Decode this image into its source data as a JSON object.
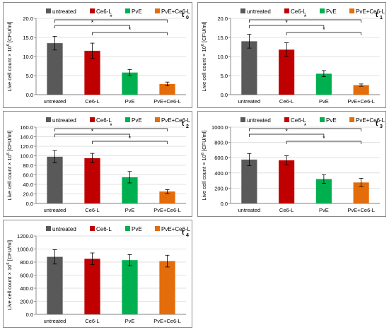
{
  "legend": {
    "entries": [
      "untreated",
      "Ce6-L",
      "PvE",
      "PvE+Ce6-L"
    ],
    "colors": [
      "#595959",
      "#c00000",
      "#00b050",
      "#e46c0a"
    ]
  },
  "ylabel_main": "Live cell count × 10",
  "ylabel_exp": "6",
  "ylabel_unit": " [CFU/ml]",
  "chart_data": [
    {
      "type": "bar",
      "panel_label": "t",
      "panel_sub": "0",
      "categories": [
        "untreated",
        "Ce6-L",
        "PvE",
        "PvE+Ce6-L"
      ],
      "values": [
        13.5,
        11.5,
        5.8,
        2.8
      ],
      "errors": [
        1.8,
        2.0,
        0.8,
        0.5
      ],
      "ylim": [
        0,
        20
      ],
      "ticks": [
        "0.0",
        "5.0",
        "10.0",
        "15.0",
        "20.0"
      ],
      "brackets": [
        {
          "from": 0,
          "to": 2,
          "label": "*"
        },
        {
          "from": 0,
          "to": 3,
          "label": "*"
        },
        {
          "from": 1,
          "to": 3,
          "label": "*"
        }
      ],
      "grid": true
    },
    {
      "type": "bar",
      "panel_label": "t",
      "panel_sub": "1",
      "categories": [
        "untreated",
        "Ce6-L",
        "PvE",
        "PvE+Ce6-L"
      ],
      "values": [
        14.0,
        11.8,
        5.5,
        2.5
      ],
      "errors": [
        1.8,
        1.8,
        0.8,
        0.3
      ],
      "ylim": [
        0,
        20
      ],
      "ticks": [
        "0.0",
        "5.0",
        "10.0",
        "15.0",
        "20.0"
      ],
      "brackets": [
        {
          "from": 0,
          "to": 2,
          "label": "*"
        },
        {
          "from": 0,
          "to": 3,
          "label": "*"
        },
        {
          "from": 1,
          "to": 3,
          "label": "*"
        }
      ],
      "grid": true
    },
    {
      "type": "bar",
      "panel_label": "t",
      "panel_sub": "2",
      "categories": [
        "untreated",
        "Ce6-L",
        "PvE",
        "PvE+Ce6-L"
      ],
      "values": [
        98,
        95,
        55,
        25
      ],
      "errors": [
        13,
        10,
        12,
        4
      ],
      "ylim": [
        0,
        160
      ],
      "ticks": [
        "0.0",
        "20.0",
        "40.0",
        "60.0",
        "80.0",
        "100.0",
        "120.0",
        "140.0",
        "160.0"
      ],
      "brackets": [
        {
          "from": 0,
          "to": 2,
          "label": "*"
        },
        {
          "from": 0,
          "to": 3,
          "label": "*"
        },
        {
          "from": 1,
          "to": 3,
          "label": "*"
        }
      ],
      "grid": true
    },
    {
      "type": "bar",
      "panel_label": "t",
      "panel_sub": "3",
      "categories": [
        "untreated",
        "Ce6-L",
        "PvE",
        "PvE+Ce6-L"
      ],
      "values": [
        575,
        565,
        320,
        275
      ],
      "errors": [
        80,
        60,
        55,
        55
      ],
      "ylim": [
        0,
        1000
      ],
      "ticks": [
        "0.0",
        "200.0",
        "400.0",
        "600.0",
        "800.0",
        "1000.0"
      ],
      "brackets": [
        {
          "from": 0,
          "to": 2,
          "label": "*"
        },
        {
          "from": 0,
          "to": 3,
          "label": "*"
        },
        {
          "from": 1,
          "to": 3,
          "label": "*"
        }
      ],
      "grid": true
    },
    {
      "type": "bar",
      "panel_label": "t",
      "panel_sub": "4",
      "categories": [
        "untreated",
        "Ce6-L",
        "PvE",
        "PvE+Ce6-L"
      ],
      "values": [
        880,
        850,
        830,
        815
      ],
      "errors": [
        110,
        90,
        85,
        90
      ],
      "ylim": [
        0,
        1200
      ],
      "ticks": [
        "0.0",
        "200.0",
        "400.0",
        "600.0",
        "800.0",
        "1000.0",
        "1200.0"
      ],
      "brackets": [],
      "grid": true
    }
  ]
}
